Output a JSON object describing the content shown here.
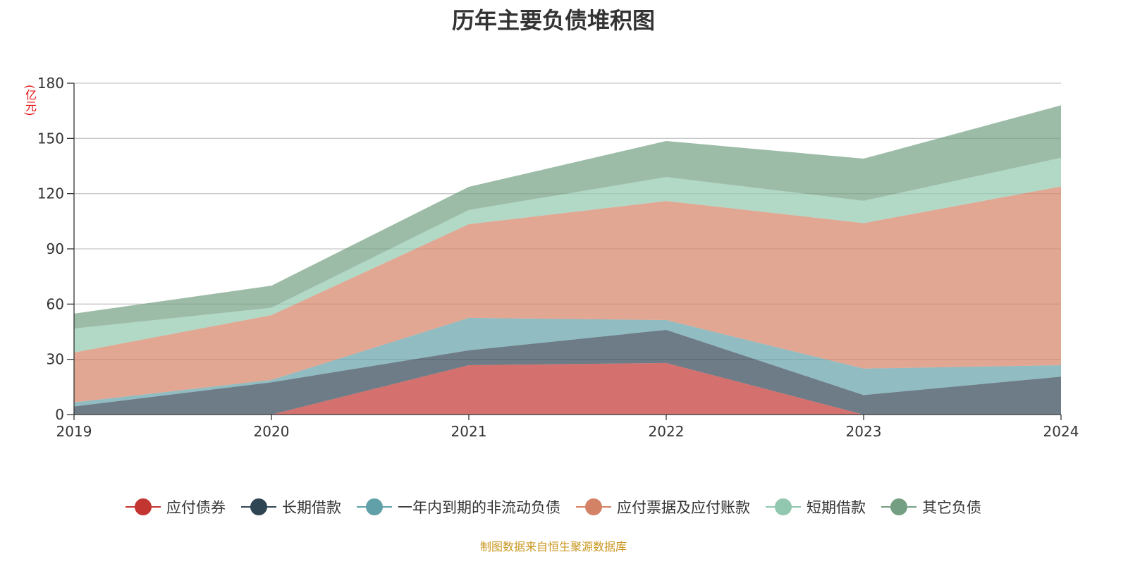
{
  "chart_data": {
    "type": "area",
    "stacked": true,
    "title": "历年主要负债堆积图",
    "ylabel": "(亿元)",
    "ylim": [
      0,
      180
    ],
    "yticks": [
      0,
      30,
      60,
      90,
      120,
      150,
      180
    ],
    "grid": true,
    "legend_position": "bottom",
    "categories": [
      "2019",
      "2020",
      "2021",
      "2022",
      "2023",
      "2024"
    ],
    "series": [
      {
        "name": "应付债券",
        "color": "#c23531",
        "values": [
          0,
          0,
          26.8,
          28.0,
          0,
          0
        ]
      },
      {
        "name": "长期借款",
        "color": "#2f4554",
        "values": [
          4.4,
          17.5,
          8.1,
          18.0,
          10.6,
          20.6
        ]
      },
      {
        "name": "一年内到期的非流动负债",
        "color": "#61a0a8",
        "values": [
          2.2,
          1.3,
          17.6,
          5.3,
          14.4,
          6.2
        ]
      },
      {
        "name": "应付票据及应付账款",
        "color": "#d48265",
        "values": [
          27.1,
          35.2,
          50.9,
          64.7,
          79.0,
          97.1
        ]
      },
      {
        "name": "短期借款",
        "color": "#91c7ae",
        "values": [
          13.0,
          4.0,
          7.7,
          13.0,
          12.1,
          15.6
        ]
      },
      {
        "name": "其它负债",
        "color": "#749f83",
        "values": [
          8.1,
          12.0,
          12.6,
          19.6,
          22.9,
          28.5
        ]
      }
    ]
  },
  "source": "制图数据来自恒生聚源数据库"
}
